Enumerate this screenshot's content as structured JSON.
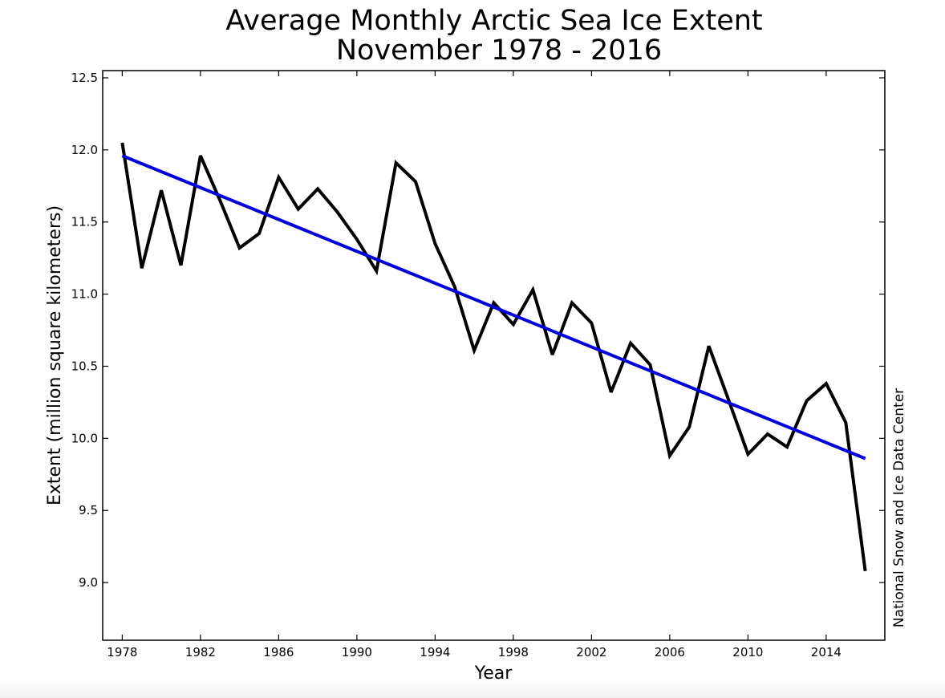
{
  "chart_data": {
    "type": "line",
    "title": "Average Monthly Arctic Sea Ice Extent",
    "subtitle": "November 1978 - 2016",
    "xlabel": "Year",
    "ylabel": "Extent (million square kilometers)",
    "credit": "National Snow and Ice Data Center",
    "xlim": [
      1977,
      2017
    ],
    "ylim": [
      8.6,
      12.55
    ],
    "x_ticks": [
      1978,
      1982,
      1986,
      1990,
      1994,
      1998,
      2002,
      2006,
      2010,
      2014
    ],
    "y_ticks": [
      9.0,
      9.5,
      10.0,
      10.5,
      11.0,
      11.5,
      12.0,
      12.5
    ],
    "y_tick_labels": [
      "9.0",
      "9.5",
      "10.0",
      "10.5",
      "11.0",
      "11.5",
      "12.0",
      "12.5"
    ],
    "grid": false,
    "series": [
      {
        "name": "Extent",
        "color": "#000000",
        "x": [
          1978,
          1979,
          1980,
          1981,
          1982,
          1983,
          1984,
          1985,
          1986,
          1987,
          1988,
          1989,
          1990,
          1991,
          1992,
          1993,
          1994,
          1995,
          1996,
          1997,
          1998,
          1999,
          2000,
          2001,
          2002,
          2003,
          2004,
          2005,
          2006,
          2007,
          2008,
          2009,
          2010,
          2011,
          2012,
          2013,
          2014,
          2015,
          2016
        ],
        "values": [
          12.05,
          11.18,
          11.72,
          11.2,
          11.96,
          11.65,
          11.32,
          11.42,
          11.81,
          11.59,
          11.73,
          11.57,
          11.38,
          11.16,
          11.91,
          11.78,
          11.35,
          11.05,
          10.61,
          10.94,
          10.79,
          11.03,
          10.58,
          10.94,
          10.8,
          10.32,
          10.66,
          10.51,
          9.88,
          10.08,
          10.64,
          10.27,
          9.89,
          10.03,
          9.94,
          10.26,
          10.38,
          10.11,
          9.08
        ]
      },
      {
        "name": "Linear trend",
        "color": "#0000dd",
        "x": [
          1978,
          2016
        ],
        "values": [
          11.96,
          9.86
        ]
      }
    ]
  }
}
